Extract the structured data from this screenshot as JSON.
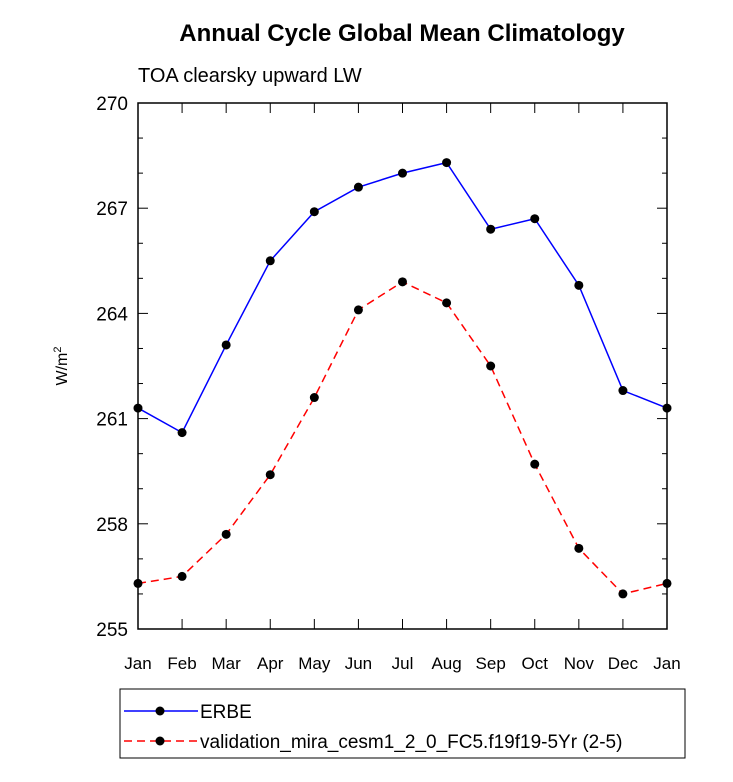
{
  "chart_data": {
    "type": "line",
    "title": "Annual Cycle Global Mean Climatology",
    "subtitle": "TOA clearsky upward LW",
    "ylabel_base": "W/m",
    "ylabel_sup": "2",
    "categories": [
      "Jan",
      "Feb",
      "Mar",
      "Apr",
      "May",
      "Jun",
      "Jul",
      "Aug",
      "Sep",
      "Oct",
      "Nov",
      "Dec",
      "Jan"
    ],
    "ylim": [
      255,
      270
    ],
    "yticks": [
      255,
      258,
      261,
      264,
      267,
      270
    ],
    "yticks_minor": [
      256,
      257,
      259,
      260,
      262,
      263,
      265,
      266,
      268,
      269
    ],
    "grid": false,
    "legend_position": "bottom",
    "series": [
      {
        "name": "ERBE",
        "color": "#0000ff",
        "dash": "solid",
        "values": [
          261.3,
          260.6,
          263.1,
          265.5,
          266.9,
          267.6,
          268.0,
          268.3,
          266.4,
          266.7,
          264.8,
          261.8,
          261.3
        ]
      },
      {
        "name": "validation_mira_cesm1_2_0_FC5.f19f19-5Yr (2-5)",
        "color": "#ff0000",
        "dash": "dashed",
        "values": [
          256.3,
          256.5,
          257.7,
          259.4,
          261.6,
          264.1,
          264.9,
          264.3,
          262.5,
          259.7,
          257.3,
          256.0,
          256.3
        ]
      }
    ]
  }
}
